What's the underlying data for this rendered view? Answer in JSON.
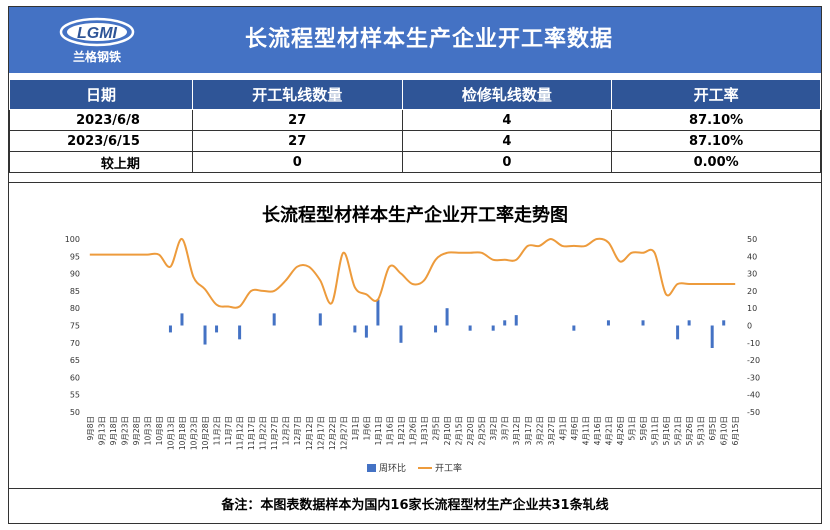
{
  "header": {
    "title": "长流程型材样本生产企业开工率数据",
    "logo_text": "LGMI",
    "logo_sub": "兰格钢铁"
  },
  "table": {
    "columns": [
      "日期",
      "开工轧线数量",
      "检修轧线数量",
      "开工率"
    ],
    "rows": [
      [
        "2023/6/8",
        "27",
        "4",
        "87.10%"
      ],
      [
        "2023/6/15",
        "27",
        "4",
        "87.10%"
      ],
      [
        "较上期",
        "0",
        "0",
        "0.00%"
      ]
    ]
  },
  "colors": {
    "header_bg": "#4472c4",
    "table_header_bg": "#2f5597",
    "bar": "#4472c4",
    "line": "#ed9b3c"
  },
  "chart_data": {
    "type": "bar+line",
    "title": "长流程型材样本生产企业开工率走势图",
    "left_axis": {
      "min": 50,
      "max": 100,
      "step": 5
    },
    "right_axis": {
      "min": -50,
      "max": 50,
      "step": 10
    },
    "x": [
      "9月8日",
      "9月13日",
      "9月18日",
      "9月23日",
      "9月28日",
      "10月3日",
      "10月8日",
      "10月13日",
      "10月18日",
      "10月23日",
      "10月28日",
      "11月2日",
      "11月7日",
      "11月12日",
      "11月17日",
      "11月22日",
      "11月27日",
      "12月2日",
      "12月7日",
      "12月12日",
      "12月17日",
      "12月22日",
      "12月27日",
      "1月1日",
      "1月6日",
      "1月11日",
      "1月16日",
      "1月21日",
      "1月26日",
      "1月31日",
      "2月5日",
      "2月10日",
      "2月15日",
      "2月20日",
      "2月25日",
      "3月2日",
      "3月7日",
      "3月12日",
      "3月17日",
      "3月22日",
      "3月27日",
      "4月1日",
      "4月6日",
      "4月11日",
      "4月16日",
      "4月21日",
      "4月26日",
      "5月1日",
      "5月6日",
      "5月11日",
      "5月16日",
      "5月21日",
      "5月26日",
      "5月31日",
      "6月5日",
      "6月10日",
      "6月15日"
    ],
    "series": [
      {
        "name": "周环比",
        "type": "bar",
        "axis": "right",
        "values": [
          0,
          0,
          0,
          0,
          0,
          0,
          0,
          -4,
          7,
          0,
          -11,
          -4,
          0,
          -8,
          0,
          0,
          7,
          0,
          0,
          0,
          7,
          0,
          0,
          -4,
          -7,
          15,
          0,
          -10,
          0,
          0,
          -4,
          10,
          0,
          -3,
          0,
          -3,
          3,
          6,
          0,
          0,
          0,
          0,
          -3,
          0,
          0,
          3,
          0,
          0,
          3,
          0,
          0,
          -8,
          3,
          0,
          -13,
          3,
          0
        ]
      },
      {
        "name": "开工率",
        "type": "line",
        "axis": "left",
        "values": [
          95.5,
          95.5,
          95.5,
          95.5,
          95.5,
          95.5,
          95.5,
          92,
          100,
          89,
          85.5,
          81,
          80.5,
          80.5,
          85,
          85,
          85,
          88,
          92,
          92,
          88,
          81.5,
          96,
          86,
          84,
          82.5,
          92,
          90,
          87,
          88,
          94,
          96,
          96,
          96,
          96,
          94,
          94,
          94,
          98,
          98,
          100,
          98,
          98,
          98,
          100,
          99,
          93.5,
          96,
          96,
          96,
          84,
          87,
          87,
          87,
          87,
          87,
          87
        ]
      }
    ]
  },
  "footer": {
    "note": "备注：本图表数据样本为国内16家长流程型材生产企业共31条轧线"
  }
}
